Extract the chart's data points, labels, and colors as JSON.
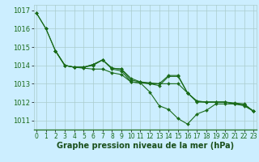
{
  "series": [
    {
      "x": [
        0,
        1,
        2,
        3,
        4,
        5,
        6,
        7,
        8,
        9,
        10,
        11,
        12,
        13,
        14,
        15,
        16,
        17,
        18,
        19,
        20,
        21,
        22,
        23
      ],
      "y": [
        1016.85,
        1016.0,
        1014.8,
        1014.0,
        1013.9,
        1013.85,
        1013.8,
        1013.8,
        1013.6,
        1013.5,
        1013.1,
        1013.05,
        1013.0,
        1013.0,
        1013.0,
        1013.0,
        1012.5,
        1012.0,
        1012.0,
        1012.0,
        1012.0,
        1011.9,
        1011.85,
        1011.5
      ]
    },
    {
      "x": [
        2,
        3,
        4,
        5,
        6,
        7,
        8,
        9,
        10,
        11,
        12,
        13,
        14,
        15,
        16,
        17,
        18,
        19,
        20,
        21,
        22,
        23
      ],
      "y": [
        1014.8,
        1014.0,
        1013.9,
        1013.9,
        1014.05,
        1014.3,
        1013.8,
        1013.7,
        1013.1,
        1013.05,
        1012.55,
        1011.8,
        1011.6,
        1011.1,
        1010.8,
        1011.35,
        1011.55,
        1011.9,
        1011.9,
        1011.9,
        1011.8,
        1011.5
      ]
    },
    {
      "x": [
        2,
        3,
        4,
        5,
        6,
        7,
        8,
        9,
        10,
        11,
        12,
        13,
        14,
        15,
        16,
        17,
        18,
        19,
        20,
        21,
        22,
        23
      ],
      "y": [
        1014.8,
        1014.0,
        1013.9,
        1013.9,
        1014.0,
        1014.3,
        1013.85,
        1013.8,
        1013.2,
        1013.1,
        1013.0,
        1012.9,
        1013.4,
        1013.4,
        1012.5,
        1012.05,
        1012.0,
        1012.0,
        1012.0,
        1011.95,
        1011.9,
        1011.5
      ]
    },
    {
      "x": [
        0,
        1,
        2,
        3,
        4,
        5,
        6,
        7,
        8,
        9,
        10,
        11,
        12,
        13,
        14,
        15,
        16,
        17,
        18,
        19,
        20,
        21,
        22,
        23
      ],
      "y": [
        1016.85,
        1016.0,
        1014.8,
        1014.0,
        1013.9,
        1013.9,
        1014.05,
        1014.3,
        1013.85,
        1013.8,
        1013.3,
        1013.1,
        1013.05,
        1013.0,
        1013.45,
        1013.45,
        1012.5,
        1012.05,
        1012.0,
        1012.0,
        1012.0,
        1011.9,
        1011.85,
        1011.5
      ]
    }
  ],
  "line_color": "#1a6b1a",
  "marker": "D",
  "marker_size": 2.0,
  "linewidth": 0.8,
  "xlim": [
    0,
    23
  ],
  "ylim": [
    1010.5,
    1017.3
  ],
  "yticks": [
    1011,
    1012,
    1013,
    1014,
    1015,
    1016,
    1017
  ],
  "xticks": [
    0,
    1,
    2,
    3,
    4,
    5,
    6,
    7,
    8,
    9,
    10,
    11,
    12,
    13,
    14,
    15,
    16,
    17,
    18,
    19,
    20,
    21,
    22,
    23
  ],
  "xlabel": "Graphe pression niveau de la mer (hPa)",
  "bg_color": "#cceeff",
  "grid_color": "#aacccc",
  "tick_color": "#1a6b1a",
  "xlabel_color": "#1a4f1a",
  "xlabel_fontsize": 7.0,
  "tick_fontsize": 5.5,
  "ytick_fontsize": 6.0
}
